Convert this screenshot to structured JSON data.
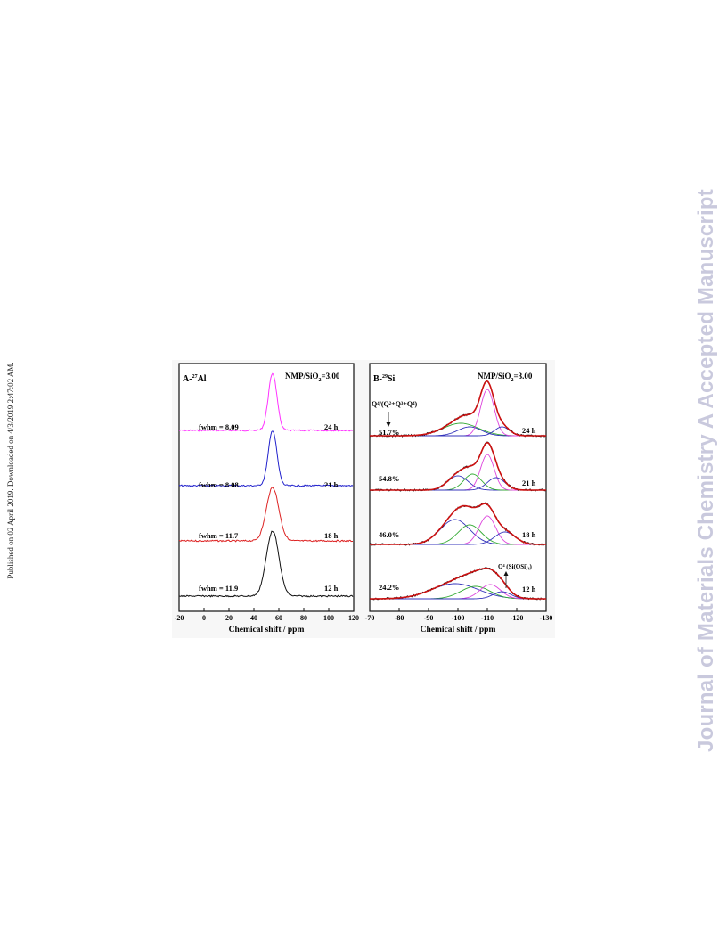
{
  "side_note": "Published on 02 April 2019. Downloaded on 4/3/2019 2:47:02 AM.",
  "watermark": "Journal of Materials Chemistry A Accepted Manuscript",
  "colors": {
    "24h": "#ff33ff",
    "21h": "#2222cc",
    "18h": "#dd2222",
    "12h": "#111111",
    "fit_total": "#cc1111",
    "q4_component": "#dd44dd",
    "q3_component": "#33aa33",
    "q2_component": "#3333bb"
  },
  "panelA": {
    "label_prefix": "A-",
    "label_sup": "27",
    "label_suffix": "Al",
    "ratio": "NMP/SiO",
    "ratio_sub": "2",
    "ratio_val": "=3.00",
    "xlabel": "Chemical shift / ppm",
    "ticks": [
      "-20",
      "0",
      "20",
      "40",
      "60",
      "80",
      "100",
      "120"
    ],
    "traces": [
      {
        "fwhm": "fwhm = 8.09",
        "time": "24 h"
      },
      {
        "fwhm": "fwhm = 8.08",
        "time": "21 h"
      },
      {
        "fwhm": "fwhm = 11.7",
        "time": "18 h"
      },
      {
        "fwhm": "fwhm = 11.9",
        "time": "12 h"
      }
    ]
  },
  "panelB": {
    "label_prefix": "B-",
    "label_sup": "29",
    "label_suffix": "Si",
    "ratio": "NMP/SiO",
    "ratio_sub": "2",
    "ratio_val": "=3.00",
    "q_ratio_label": "Q⁴/(Q²+Q³+Q⁴)",
    "q4_annotation": "Q⁴ (Si(OSi)₄)",
    "xlabel": "Chemical shift / ppm",
    "ticks": [
      "-70",
      "-80",
      "-90",
      "-100",
      "-110",
      "-120",
      "-130"
    ],
    "traces": [
      {
        "percent": "51.7%",
        "time": "24 h"
      },
      {
        "percent": "54.8%",
        "time": "21 h"
      },
      {
        "percent": "46.0%",
        "time": "18 h"
      },
      {
        "percent": "24.2%",
        "time": "12 h"
      }
    ]
  },
  "chart_data": [
    {
      "type": "line",
      "xlabel": "Chemical shift / ppm",
      "xlim": [
        -20,
        120
      ],
      "series": [
        {
          "name": "24 h",
          "peak_center": 55,
          "fwhm": 8.09
        },
        {
          "name": "21 h",
          "peak_center": 55,
          "fwhm": 8.08
        },
        {
          "name": "18 h",
          "peak_center": 55,
          "fwhm": 11.7
        },
        {
          "name": "12 h",
          "peak_center": 55,
          "fwhm": 11.9
        }
      ]
    },
    {
      "type": "line",
      "xlabel": "Chemical shift / ppm",
      "xlim": [
        -70,
        -130
      ],
      "series": [
        {
          "name": "24 h",
          "q4_ratio_percent": 51.7
        },
        {
          "name": "21 h",
          "q4_ratio_percent": 54.8
        },
        {
          "name": "18 h",
          "q4_ratio_percent": 46.0
        },
        {
          "name": "12 h",
          "q4_ratio_percent": 24.2
        }
      ]
    }
  ]
}
